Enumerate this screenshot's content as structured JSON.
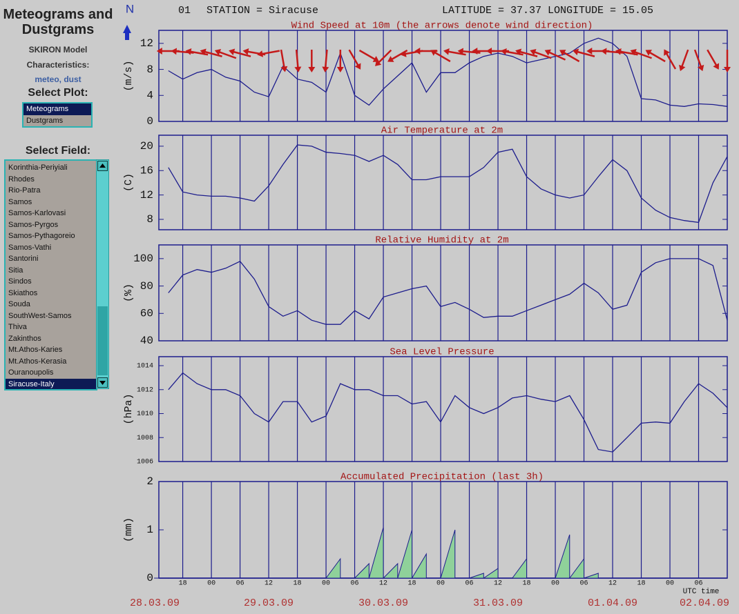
{
  "header": {
    "station_number": "01",
    "station": "STATION = Siracuse",
    "location": "LATITUDE = 37.37 LONGITUDE = 15.05",
    "north": "N"
  },
  "sidebar": {
    "title": "Meteograms and Dustgrams",
    "model": "SKIRON Model",
    "characteristics_label": "Characteristics:",
    "characteristics": "meteo, dust",
    "select_plot_label": "Select Plot:",
    "plot_options": [
      "Meteograms",
      "Dustgrams"
    ],
    "select_field_label": "Select Field:",
    "field_options": [
      "Korinthia-Periyiali",
      "Rhodes",
      "Rio-Patra",
      "Samos",
      "Samos-Karlovasi",
      "Samos-Pyrgos",
      "Samos-Pythagoreio",
      "Samos-Vathi",
      "Santorini",
      "Sitia",
      "Sindos",
      "Skiathos",
      "Souda",
      "SouthWest-Samos",
      "Thiva",
      "Zakinthos",
      "Mt.Athos-Karies",
      "Mt.Athos-Kerasia",
      "Ouranoupolis",
      "Siracuse-Italy"
    ],
    "selected_field": 19
  },
  "chart_data": [
    {
      "type": "line",
      "title": "Wind Speed at 10m (the arrows denote wind direction)",
      "ylabel": "(m/s)",
      "color": "#1c1c8c",
      "arrow_color": "#c41a1a",
      "x": [
        15,
        18,
        21,
        24,
        27,
        30,
        33,
        36,
        39,
        42,
        45,
        48,
        51,
        54,
        57,
        60,
        63,
        66,
        69,
        72,
        75,
        78,
        81,
        84,
        87,
        90,
        93,
        96,
        99,
        102,
        105,
        108,
        111,
        114,
        117,
        120,
        123,
        126,
        129,
        132
      ],
      "values": [
        7.8,
        6.5,
        7.5,
        8,
        6.8,
        6.2,
        4.5,
        3.8,
        8.5,
        6.5,
        6,
        4.5,
        10.5,
        4,
        2.5,
        5,
        7,
        9,
        4.5,
        7.5,
        7.5,
        9,
        10,
        10.5,
        10,
        9,
        9.5,
        10,
        10.5,
        12,
        12.8,
        12,
        10,
        3.5,
        3.3,
        2.5,
        2.3,
        2.7,
        2.6,
        2.3
      ],
      "wind_direction": [
        90,
        95,
        100,
        105,
        110,
        105,
        100,
        80,
        350,
        355,
        0,
        5,
        0,
        330,
        300,
        45,
        60,
        80,
        90,
        120,
        100,
        95,
        90,
        90,
        100,
        105,
        110,
        115,
        120,
        105,
        90,
        95,
        100,
        110,
        120,
        150,
        20,
        340,
        330,
        0
      ],
      "xlim": [
        13,
        132
      ],
      "ylim": [
        0,
        14
      ],
      "yticks": [
        0,
        4,
        8,
        12
      ]
    },
    {
      "type": "line",
      "title": "Air Temperature at 2m",
      "ylabel": "(C)",
      "color": "#1c1c8c",
      "x": [
        15,
        18,
        21,
        24,
        27,
        30,
        33,
        36,
        39,
        42,
        45,
        48,
        51,
        54,
        57,
        60,
        63,
        66,
        69,
        72,
        75,
        78,
        81,
        84,
        87,
        90,
        93,
        96,
        99,
        102,
        105,
        108,
        111,
        114,
        117,
        120,
        123,
        126,
        129,
        132
      ],
      "values": [
        16.5,
        12.5,
        12,
        11.8,
        11.8,
        11.5,
        11,
        13.5,
        17,
        20.2,
        20,
        19,
        18.8,
        18.5,
        17.5,
        18.5,
        17,
        14.5,
        14.5,
        15,
        15,
        15,
        16.5,
        19,
        19.5,
        15,
        13,
        12,
        11.5,
        12,
        15,
        17.8,
        16,
        11.5,
        9.5,
        8.3,
        7.8,
        7.5,
        14,
        18.3
      ],
      "xlim": [
        13,
        132
      ],
      "ylim": [
        6.3,
        21.8
      ],
      "yticks": [
        8,
        12,
        16,
        20
      ]
    },
    {
      "type": "line",
      "title": "Relative Humidity at 2m",
      "ylabel": "(%)",
      "color": "#1c1c8c",
      "x": [
        15,
        18,
        21,
        24,
        27,
        30,
        33,
        36,
        39,
        42,
        45,
        48,
        51,
        54,
        57,
        60,
        63,
        66,
        69,
        72,
        75,
        78,
        81,
        84,
        87,
        90,
        93,
        96,
        99,
        102,
        105,
        108,
        111,
        114,
        117,
        120,
        123,
        126,
        129,
        132
      ],
      "values": [
        75,
        88,
        92,
        90,
        93,
        98,
        85,
        65,
        58,
        62,
        55,
        52,
        52,
        62,
        56,
        72,
        75,
        78,
        80,
        65,
        68,
        63,
        57,
        58,
        58,
        62,
        66,
        70,
        74,
        82,
        75,
        63,
        66,
        90,
        97,
        100,
        100,
        100,
        95,
        55
      ],
      "xlim": [
        13,
        132
      ],
      "ylim": [
        40,
        110
      ],
      "yticks": [
        40,
        60,
        80,
        100
      ]
    },
    {
      "type": "line",
      "title": "Sea Level Pressure",
      "ylabel": "(hPa)",
      "color": "#1c1c8c",
      "x": [
        15,
        18,
        21,
        24,
        27,
        30,
        33,
        36,
        39,
        42,
        45,
        48,
        51,
        54,
        57,
        60,
        63,
        66,
        69,
        72,
        75,
        78,
        81,
        84,
        87,
        90,
        93,
        96,
        99,
        102,
        105,
        108,
        111,
        114,
        117,
        120,
        123,
        126,
        129,
        132
      ],
      "values": [
        1012,
        1013.4,
        1012.5,
        1012,
        1012,
        1011.5,
        1010,
        1009.3,
        1011,
        1011,
        1009.3,
        1009.8,
        1012.5,
        1012,
        1012,
        1011.5,
        1011.5,
        1010.8,
        1011,
        1009.3,
        1011.5,
        1010.5,
        1010,
        1010.5,
        1011.3,
        1011.5,
        1011.2,
        1011,
        1011.5,
        1009.5,
        1007,
        1006.8,
        1008,
        1009.2,
        1009.3,
        1009.2,
        1011,
        1012.5,
        1011.7,
        1010.5
      ],
      "xlim": [
        13,
        132
      ],
      "ylim": [
        1006,
        1014.75
      ],
      "yticks": [
        1006,
        1008,
        1010,
        1012,
        1014
      ]
    },
    {
      "type": "area",
      "title": "Accumulated Precipitation (last 3h)",
      "ylabel": "(mm)",
      "color": "#1c1c8c",
      "fill": "#8fd19a",
      "x": [
        15,
        18,
        21,
        24,
        27,
        30,
        33,
        36,
        39,
        42,
        45,
        48,
        51,
        54,
        57,
        60,
        63,
        66,
        69,
        72,
        75,
        78,
        81,
        84,
        87,
        90,
        93,
        96,
        99,
        102,
        105,
        108,
        111,
        114,
        117,
        120,
        123,
        126,
        129,
        132
      ],
      "values": [
        0,
        0,
        0,
        0,
        0,
        0,
        0,
        0,
        0,
        0,
        0,
        0,
        0.4,
        0,
        0.3,
        1.05,
        0.3,
        1.0,
        0.5,
        0,
        1.0,
        0,
        0.1,
        0.2,
        0,
        0.4,
        0,
        0,
        0.9,
        0.4,
        0.1,
        0,
        0,
        0,
        0,
        0,
        0,
        0,
        0,
        0
      ],
      "xlim": [
        13,
        132
      ],
      "ylim": [
        0,
        2
      ],
      "yticks": [
        0,
        1,
        2
      ],
      "xlabel": "UTC time",
      "xticks": [
        {
          "value": 18,
          "label": "18"
        },
        {
          "value": 24,
          "label": "00"
        },
        {
          "value": 30,
          "label": "06"
        },
        {
          "value": 36,
          "label": "12"
        },
        {
          "value": 42,
          "label": "18"
        },
        {
          "value": 48,
          "label": "00"
        },
        {
          "value": 54,
          "label": "06"
        },
        {
          "value": 60,
          "label": "12"
        },
        {
          "value": 66,
          "label": "18"
        },
        {
          "value": 72,
          "label": "00"
        },
        {
          "value": 78,
          "label": "06"
        },
        {
          "value": 84,
          "label": "12"
        },
        {
          "value": 90,
          "label": "18"
        },
        {
          "value": 96,
          "label": "00"
        },
        {
          "value": 102,
          "label": "06"
        },
        {
          "value": 108,
          "label": "12"
        },
        {
          "value": 114,
          "label": "18"
        },
        {
          "value": 120,
          "label": "00"
        },
        {
          "value": 126,
          "label": "06"
        }
      ],
      "date_ticks": [
        {
          "value": 12,
          "label": "28.03.09"
        },
        {
          "value": 36,
          "label": "29.03.09"
        },
        {
          "value": 60,
          "label": "30.03.09"
        },
        {
          "value": 84,
          "label": "31.03.09"
        },
        {
          "value": 108,
          "label": "01.04.09"
        },
        {
          "value": 132,
          "label": "02.04.09"
        }
      ]
    }
  ]
}
